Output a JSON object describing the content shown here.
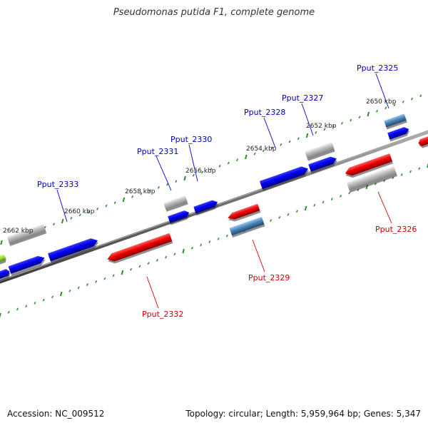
{
  "title": "Pseudomonas putida F1, complete genome",
  "footer": {
    "accession": "Accession: NC_009512",
    "stats": "Topology: circular; Length: 5,959,964 bp; Genes: 5,347"
  },
  "colors": {
    "forward_gene": "#0000ee",
    "reverse_gene": "#ee0000",
    "grey_gene": "#b8b8b8",
    "teal_gene": "#4a86b8",
    "lime_gene": "#99dd33",
    "backbone": "#707070",
    "tick": "#2e8b2e",
    "label_forward": "#0000bb",
    "label_reverse": "#cc0000"
  },
  "scale_labels": [
    "2662 kbp",
    "2660 kbp",
    "2658 kbp",
    "2656 kbp",
    "2654 kbp",
    "2652 kbp",
    "2650 kbp"
  ],
  "gene_labels": {
    "forward": [
      "Pput_2333",
      "Pput_2331",
      "Pput_2330",
      "Pput_2328",
      "Pput_2327",
      "Pput_2325"
    ],
    "reverse": [
      "Pput_2332",
      "Pput_2329",
      "Pput_2326"
    ]
  }
}
